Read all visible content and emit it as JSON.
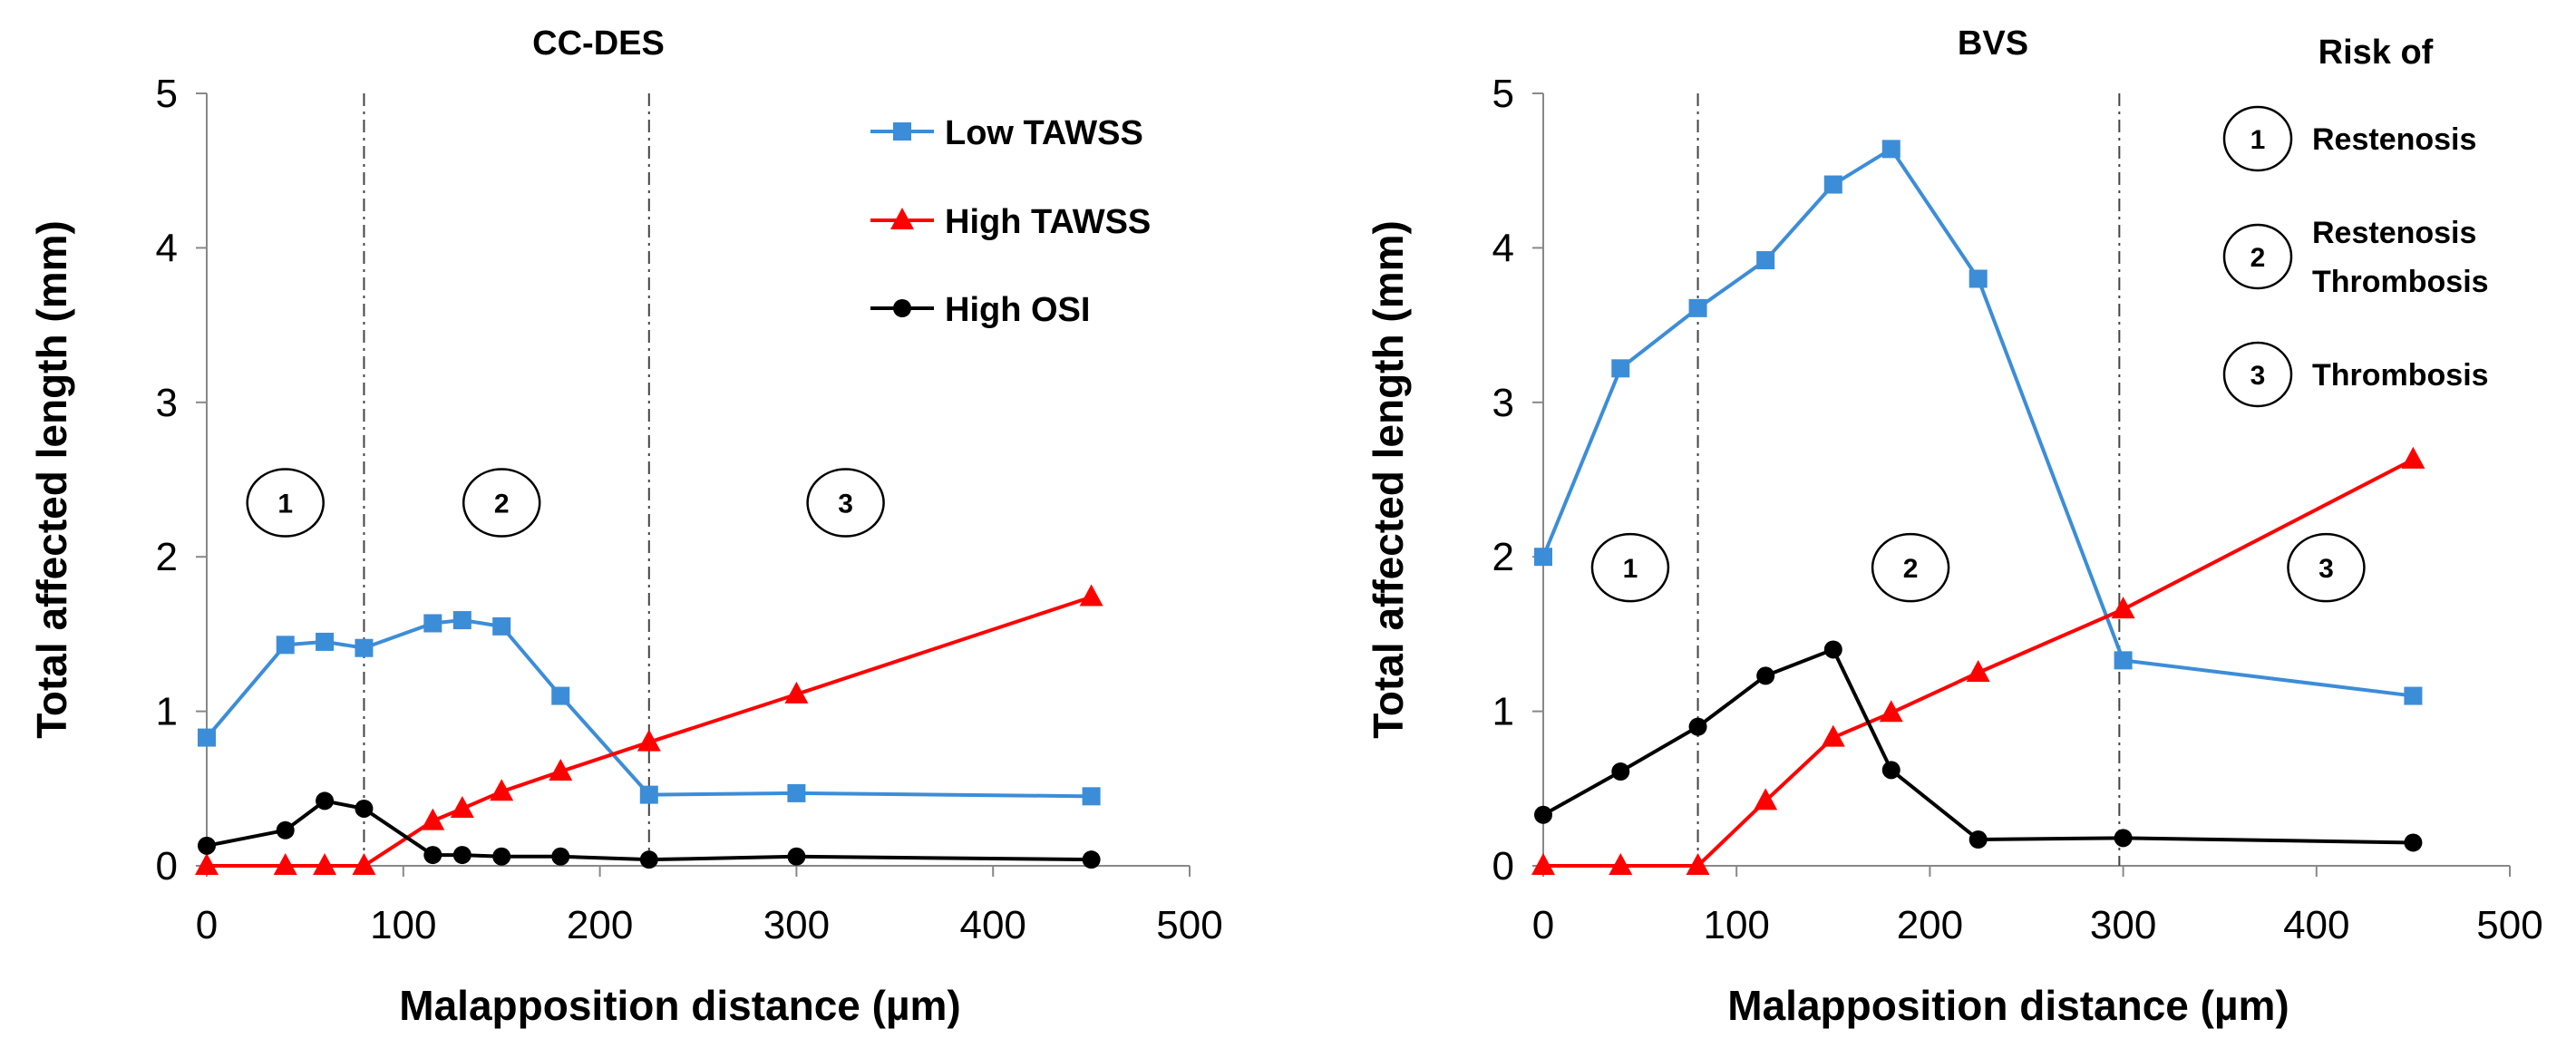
{
  "chart_data": [
    {
      "type": "line",
      "title": "CC-DES",
      "xlabel": "Malapposition distance (µm)",
      "ylabel": "Total affected length  (mm)",
      "xlim": [
        0,
        500
      ],
      "ylim": [
        0,
        5
      ],
      "xticks": [
        "0",
        "100",
        "200",
        "300",
        "400",
        "500"
      ],
      "yticks": [
        "0",
        "1",
        "2",
        "3",
        "4",
        "5"
      ],
      "vlines": [
        80,
        225
      ],
      "zones": [
        {
          "label": "1",
          "x": 40,
          "y": 2.35
        },
        {
          "label": "2",
          "x": 150,
          "y": 2.35
        },
        {
          "label": "3",
          "x": 325,
          "y": 2.35
        }
      ],
      "legend": [
        {
          "label": "Low TAWSS",
          "series": 0
        },
        {
          "label": "High TAWSS",
          "series": 1
        },
        {
          "label": "High OSI",
          "series": 2
        }
      ],
      "series": [
        {
          "name": "Low TAWSS",
          "color": "#3c8dd8",
          "marker": "square",
          "x": [
            0,
            40,
            60,
            80,
            115,
            130,
            150,
            180,
            225,
            300,
            450
          ],
          "y": [
            0.83,
            1.43,
            1.45,
            1.41,
            1.57,
            1.59,
            1.55,
            1.1,
            0.46,
            0.47,
            0.45
          ]
        },
        {
          "name": "High TAWSS",
          "color": "#ff0000",
          "marker": "triangle",
          "x": [
            0,
            40,
            60,
            80,
            115,
            130,
            150,
            180,
            225,
            300,
            450
          ],
          "y": [
            0,
            0,
            0,
            0,
            0.29,
            0.37,
            0.48,
            0.61,
            0.8,
            1.11,
            1.74
          ]
        },
        {
          "name": "High OSI",
          "color": "#000000",
          "marker": "circle",
          "x": [
            0,
            40,
            60,
            80,
            115,
            130,
            150,
            180,
            225,
            300,
            450
          ],
          "y": [
            0.13,
            0.23,
            0.42,
            0.37,
            0.07,
            0.07,
            0.06,
            0.06,
            0.04,
            0.06,
            0.04
          ]
        }
      ]
    },
    {
      "type": "line",
      "title": "BVS",
      "xlabel": "Malapposition distance (µm)",
      "ylabel": "Total affected length  (mm)",
      "xlim": [
        0,
        500
      ],
      "ylim": [
        0,
        5
      ],
      "xticks": [
        "0",
        "100",
        "200",
        "300",
        "400",
        "500"
      ],
      "yticks": [
        "0",
        "1",
        "2",
        "3",
        "4",
        "5"
      ],
      "vlines": [
        80,
        298
      ],
      "zones": [
        {
          "label": "1",
          "x": 45,
          "y": 1.93
        },
        {
          "label": "2",
          "x": 190,
          "y": 1.93
        },
        {
          "label": "3",
          "x": 405,
          "y": 1.93
        }
      ],
      "risk": {
        "title": "Risk of",
        "items": [
          {
            "num": "1",
            "lines": [
              "Restenosis"
            ]
          },
          {
            "num": "2",
            "lines": [
              "Restenosis",
              "Thrombosis"
            ]
          },
          {
            "num": "3",
            "lines": [
              "Thrombosis"
            ]
          }
        ]
      },
      "series": [
        {
          "name": "Low TAWSS",
          "color": "#3c8dd8",
          "marker": "square",
          "x": [
            0,
            40,
            80,
            115,
            150,
            180,
            225,
            300,
            450
          ],
          "y": [
            2.0,
            3.22,
            3.61,
            3.92,
            4.41,
            4.64,
            3.8,
            1.33,
            1.1
          ]
        },
        {
          "name": "High TAWSS",
          "color": "#ff0000",
          "marker": "triangle",
          "x": [
            0,
            40,
            80,
            115,
            150,
            180,
            225,
            300,
            450
          ],
          "y": [
            0,
            0,
            0,
            0.42,
            0.83,
            0.99,
            1.25,
            1.66,
            2.63
          ]
        },
        {
          "name": "High OSI",
          "color": "#000000",
          "marker": "circle",
          "x": [
            0,
            40,
            80,
            115,
            150,
            180,
            225,
            300,
            450
          ],
          "y": [
            0.33,
            0.61,
            0.9,
            1.23,
            1.4,
            0.62,
            0.17,
            0.18,
            0.15
          ]
        }
      ]
    }
  ]
}
